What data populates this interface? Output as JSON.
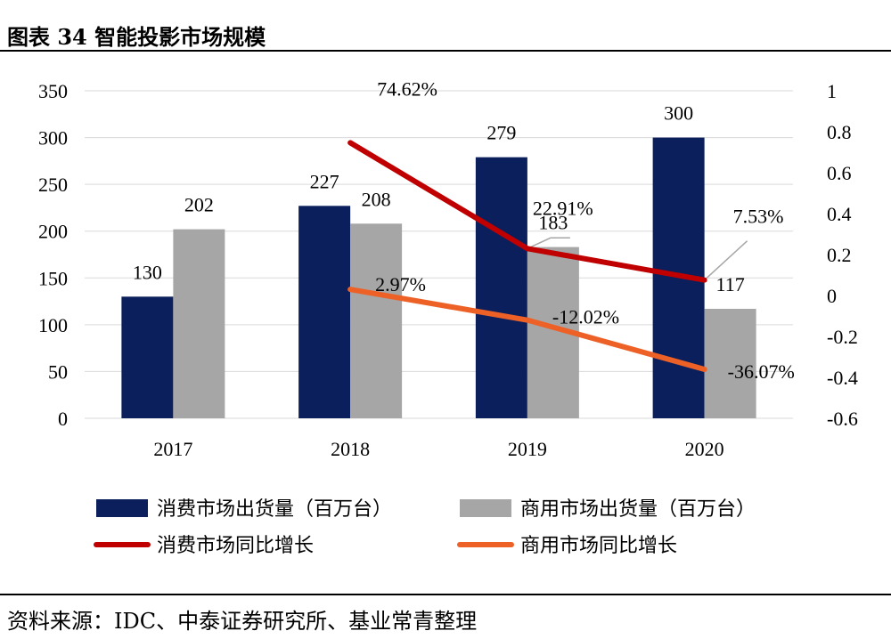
{
  "page": {
    "title": "图表 34  智能投影市场规模",
    "source": "资料来源：IDC、中泰证券研究所、基业常青整理"
  },
  "chart_data": {
    "type": "bar",
    "categories": [
      "2017",
      "2018",
      "2019",
      "2020"
    ],
    "series": [
      {
        "name": "消费市场出货量（百万台）",
        "kind": "bar",
        "axis": "left",
        "color": "#0b1f5c",
        "values": [
          130,
          227,
          279,
          300
        ]
      },
      {
        "name": "商用市场出货量（百万台）",
        "kind": "bar",
        "axis": "left",
        "color": "#a6a6a6",
        "values": [
          202,
          208,
          183,
          117
        ]
      },
      {
        "name": "消费市场同比增长",
        "kind": "line",
        "axis": "right",
        "color": "#c00000",
        "values": [
          null,
          0.7462,
          0.2291,
          0.0753
        ],
        "labels": [
          null,
          "74.62%",
          "22.91%",
          "7.53%"
        ]
      },
      {
        "name": "商用市场同比增长",
        "kind": "line",
        "axis": "right",
        "color": "#ed6127",
        "values": [
          null,
          0.0297,
          -0.1202,
          -0.3607
        ],
        "labels": [
          null,
          "2.97%",
          "-12.02%",
          "-36.07%"
        ]
      }
    ],
    "y_left": {
      "min": 0,
      "max": 350,
      "ticks": [
        0,
        50,
        100,
        150,
        200,
        250,
        300,
        350
      ]
    },
    "y_right": {
      "min": -0.6,
      "max": 1,
      "ticks": [
        -0.6,
        -0.4,
        -0.2,
        0,
        0.2,
        0.4,
        0.6,
        0.8,
        1
      ],
      "tick_labels": [
        "-0.6",
        "-0.4",
        "-0.2",
        "0",
        "0.2",
        "0.4",
        "0.6",
        "0.8",
        "1"
      ]
    },
    "grid": true,
    "legend_position": "bottom"
  }
}
